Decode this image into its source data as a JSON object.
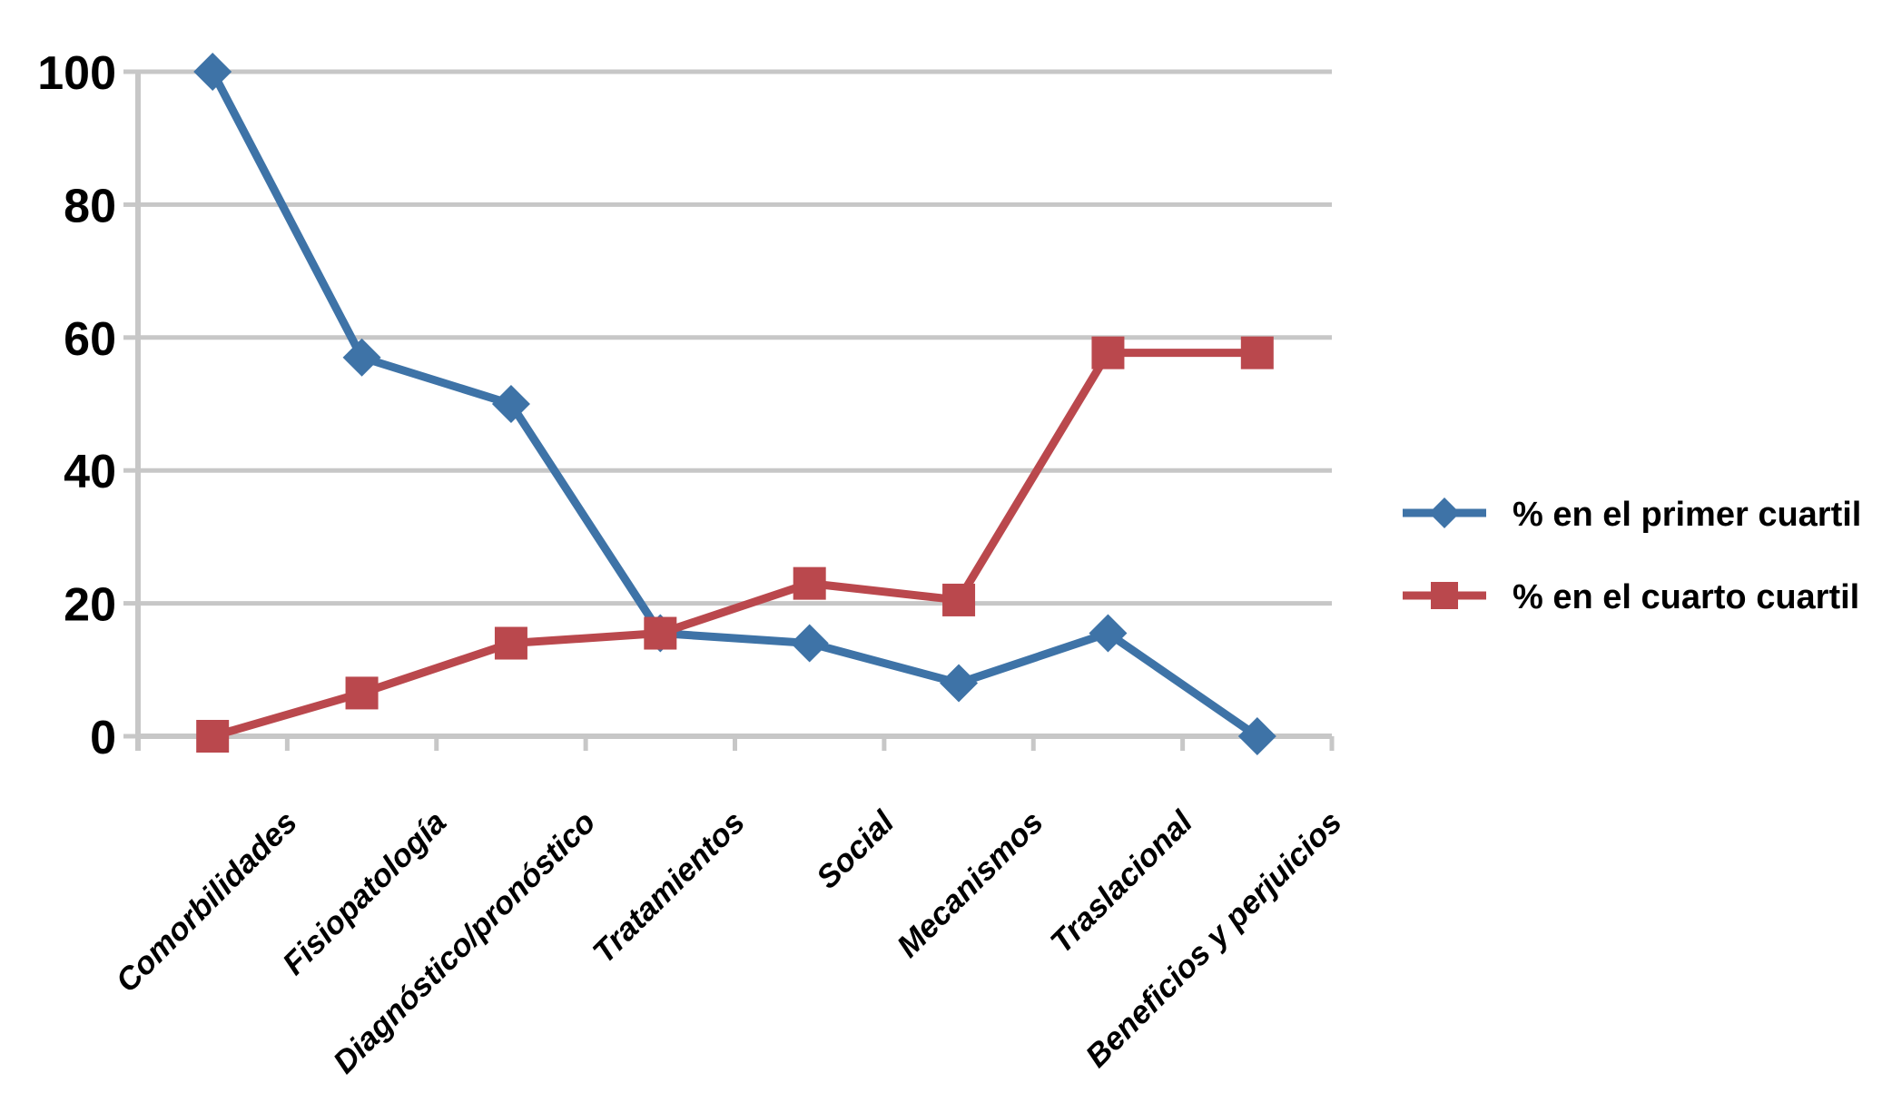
{
  "chart_data": {
    "type": "line",
    "title": "",
    "categories": [
      "Comorbilidades",
      "Fisiopatología",
      "Diagnóstico/pronóstico",
      "Tratamientos",
      "Social",
      "Mecanismos",
      "Traslacional",
      "Beneficios y perjuicios"
    ],
    "series": [
      {
        "name": "% en el primer cuartil",
        "marker": "diamond",
        "color": "#3E73A7",
        "values": [
          100,
          57,
          50,
          15.5,
          14,
          8,
          15.5,
          0
        ]
      },
      {
        "name": "% en el cuarto cuartil",
        "marker": "square",
        "color": "#BA484D",
        "values": [
          0,
          6.5,
          14,
          15.5,
          23,
          20.5,
          57.7,
          57.7
        ]
      }
    ],
    "ylim": [
      0,
      100
    ],
    "yticks": [
      0,
      20,
      40,
      60,
      80,
      100
    ],
    "grid": "horizontal",
    "gridline_color": "#C7C7C7",
    "axis_text_color": "#000000",
    "background": "#FFFFFF",
    "legend_position": "right"
  }
}
